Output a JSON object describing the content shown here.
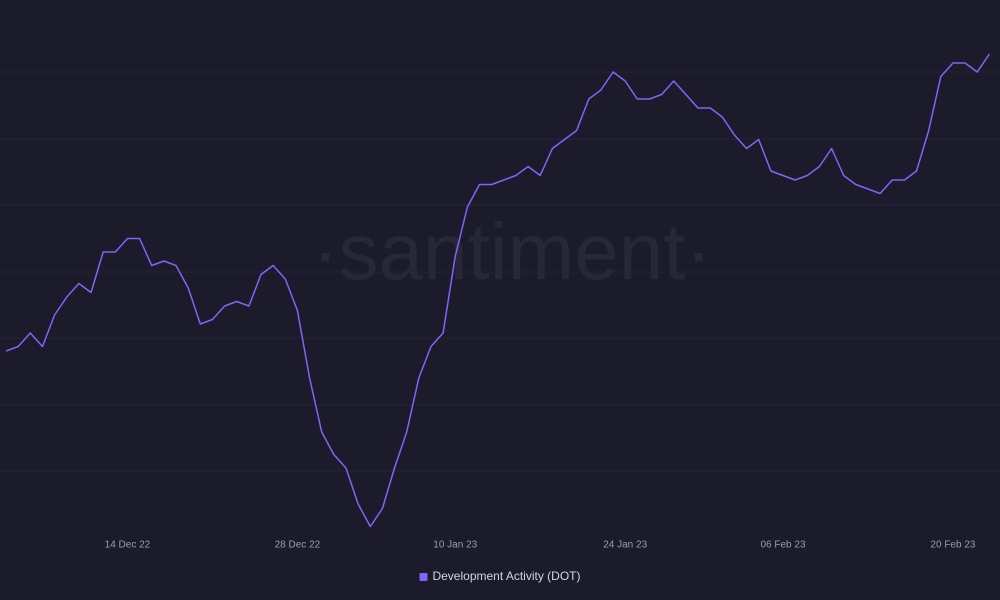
{
  "chart_data": {
    "type": "line",
    "watermark": "·santiment·",
    "x": [
      "2022-12-04",
      "2022-12-05",
      "2022-12-06",
      "2022-12-07",
      "2022-12-08",
      "2022-12-09",
      "2022-12-10",
      "2022-12-11",
      "2022-12-12",
      "2022-12-13",
      "2022-12-14",
      "2022-12-15",
      "2022-12-16",
      "2022-12-17",
      "2022-12-18",
      "2022-12-19",
      "2022-12-20",
      "2022-12-21",
      "2022-12-22",
      "2022-12-23",
      "2022-12-24",
      "2022-12-25",
      "2022-12-26",
      "2022-12-27",
      "2022-12-28",
      "2022-12-29",
      "2022-12-30",
      "2022-12-31",
      "2023-01-01",
      "2023-01-02",
      "2023-01-03",
      "2023-01-04",
      "2023-01-05",
      "2023-01-06",
      "2023-01-07",
      "2023-01-08",
      "2023-01-09",
      "2023-01-10",
      "2023-01-11",
      "2023-01-12",
      "2023-01-13",
      "2023-01-14",
      "2023-01-15",
      "2023-01-16",
      "2023-01-17",
      "2023-01-18",
      "2023-01-19",
      "2023-01-20",
      "2023-01-21",
      "2023-01-22",
      "2023-01-23",
      "2023-01-24",
      "2023-01-25",
      "2023-01-26",
      "2023-01-27",
      "2023-01-28",
      "2023-01-29",
      "2023-01-30",
      "2023-01-31",
      "2023-02-01",
      "2023-02-02",
      "2023-02-03",
      "2023-02-04",
      "2023-02-05",
      "2023-02-06",
      "2023-02-07",
      "2023-02-08",
      "2023-02-09",
      "2023-02-10",
      "2023-02-11",
      "2023-02-12",
      "2023-02-13",
      "2023-02-14",
      "2023-02-15",
      "2023-02-16",
      "2023-02-17",
      "2023-02-18",
      "2023-02-19",
      "2023-02-20",
      "2023-02-21",
      "2023-02-22",
      "2023-02-23"
    ],
    "series": [
      {
        "name": "Development Activity (DOT)",
        "color": "#8463f7",
        "values": [
          42,
          43,
          46,
          43,
          50,
          54,
          57,
          55,
          64,
          64,
          67,
          67,
          61,
          62,
          61,
          56,
          48,
          49,
          52,
          53,
          52,
          59,
          61,
          58,
          51,
          36,
          24,
          19,
          16,
          8,
          3,
          7,
          16,
          24,
          36,
          43,
          46,
          63,
          74,
          79,
          79,
          80,
          81,
          83,
          81,
          87,
          89,
          91,
          98,
          100,
          104,
          102,
          98,
          98,
          99,
          102,
          99,
          96,
          96,
          94,
          90,
          87,
          89,
          82,
          81,
          80,
          81,
          83,
          87,
          81,
          79,
          78,
          77,
          80,
          80,
          82,
          91,
          103,
          106,
          106,
          104,
          108
        ]
      }
    ],
    "xlim": [
      "2022-12-03T12:00Z",
      "2023-02-23T21:00Z"
    ],
    "xticks": [
      {
        "value": "2022-12-14",
        "label": "14 Dec 22"
      },
      {
        "value": "2022-12-28",
        "label": "28 Dec 22"
      },
      {
        "value": "2023-01-10",
        "label": "10 Jan 23"
      },
      {
        "value": "2023-01-24",
        "label": "24 Jan 23"
      },
      {
        "value": "2023-02-06",
        "label": "06 Feb 23"
      },
      {
        "value": "2023-02-20",
        "label": "20 Feb 23"
      }
    ],
    "ylim": [
      0,
      120
    ]
  }
}
